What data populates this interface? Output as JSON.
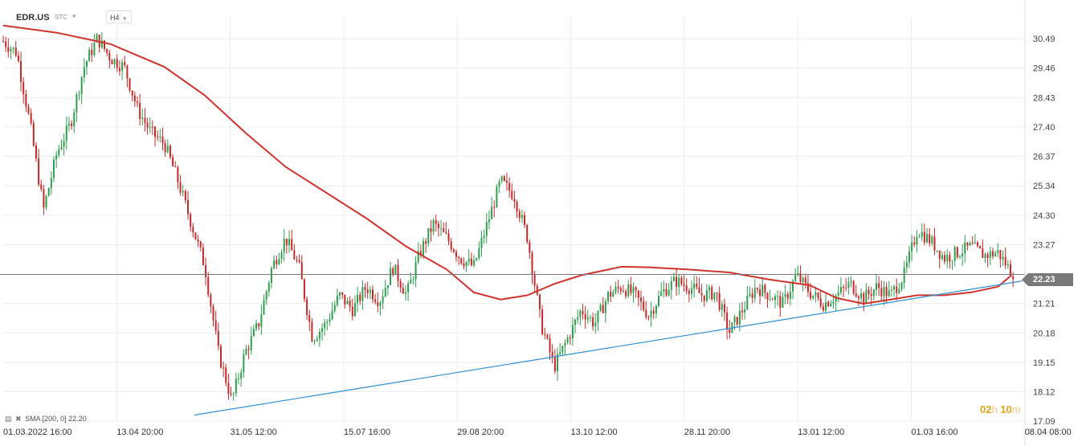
{
  "header": {
    "symbol": "EDR.US",
    "type": "STC",
    "timeframe": "H4"
  },
  "legend": {
    "text": "SMA [200, 0] 22.20",
    "color": "#d0342c"
  },
  "current_price": "22.23",
  "timer": {
    "hours": "02",
    "h_unit": "h",
    "minutes": "10",
    "m_unit": "m"
  },
  "colors": {
    "up": "#2e9e4f",
    "down": "#c62828",
    "sma": "#d0342c",
    "trendline": "#2b8fd6",
    "grid": "#ececec",
    "price_line": "#7a7a7a"
  },
  "chart_data": {
    "type": "candlestick",
    "symbol": "EDR.US",
    "timeframe": "H4",
    "ylim": [
      17.09,
      31.0
    ],
    "y_ticks": [
      "30.49",
      "29.46",
      "28.43",
      "27.40",
      "26.37",
      "25.34",
      "24.30",
      "23.27",
      "22.23",
      "21.21",
      "20.18",
      "19.15",
      "18.12",
      "17.09"
    ],
    "x_ticks": [
      "01.03.2022",
      "16:00",
      "13.04",
      "20:00",
      "31.05",
      "12:00",
      "15.07",
      "16:00",
      "29.08",
      "20:00",
      "13.10",
      "12:00",
      "28.11",
      "20:00",
      "13.01",
      "12:00",
      "01.03",
      "16:00",
      "08.04",
      "08:00"
    ],
    "x_tick_groups": [
      {
        "date": "01.03.2022",
        "time": "16:00"
      },
      {
        "date": "13.04",
        "time": "20:00"
      },
      {
        "date": "31.05",
        "time": "12:00"
      },
      {
        "date": "15.07",
        "time": "16:00"
      },
      {
        "date": "29.08",
        "time": "20:00"
      },
      {
        "date": "13.10",
        "time": "12:00"
      },
      {
        "date": "28.11",
        "time": "20:00"
      },
      {
        "date": "13.01",
        "time": "12:00"
      },
      {
        "date": "01.03",
        "time": "16:00"
      },
      {
        "date": "08.04",
        "time": "08:00"
      }
    ],
    "price_path": [
      [
        0,
        30.4
      ],
      [
        1,
        30.0
      ],
      [
        2,
        27.5
      ],
      [
        3,
        24.5
      ],
      [
        4,
        26.5
      ],
      [
        5,
        27.5
      ],
      [
        6,
        29.5
      ],
      [
        7,
        30.5
      ],
      [
        8,
        29.8
      ],
      [
        9,
        29.5
      ],
      [
        10,
        28.0
      ],
      [
        11,
        27.2
      ],
      [
        12,
        26.8
      ],
      [
        13,
        25.5
      ],
      [
        14,
        24.0
      ],
      [
        15,
        22.5
      ],
      [
        16,
        19.5
      ],
      [
        17,
        17.8
      ],
      [
        18,
        19.5
      ],
      [
        19,
        20.5
      ],
      [
        20,
        22.5
      ],
      [
        21,
        23.5
      ],
      [
        22,
        22.5
      ],
      [
        23,
        20.0
      ],
      [
        24,
        20.5
      ],
      [
        25,
        21.5
      ],
      [
        26,
        21.0
      ],
      [
        27,
        21.8
      ],
      [
        28,
        21.3
      ],
      [
        29,
        22.5
      ],
      [
        30,
        21.5
      ],
      [
        31,
        23.0
      ],
      [
        32,
        24.0
      ],
      [
        33,
        23.5
      ],
      [
        34,
        22.8
      ],
      [
        35,
        22.5
      ],
      [
        36,
        24.0
      ],
      [
        37,
        25.5
      ],
      [
        38,
        25.0
      ],
      [
        39,
        23.5
      ],
      [
        40,
        20.5
      ],
      [
        41,
        19.0
      ],
      [
        42,
        20.0
      ],
      [
        43,
        21.0
      ],
      [
        44,
        20.5
      ],
      [
        45,
        21.5
      ],
      [
        46,
        21.8
      ],
      [
        47,
        21.5
      ],
      [
        48,
        20.8
      ],
      [
        49,
        21.6
      ],
      [
        50,
        22.0
      ],
      [
        51,
        21.8
      ],
      [
        52,
        21.5
      ],
      [
        53,
        21.6
      ],
      [
        54,
        20.2
      ],
      [
        55,
        21.0
      ],
      [
        56,
        21.8
      ],
      [
        57,
        21.5
      ],
      [
        58,
        21.2
      ],
      [
        59,
        22.2
      ],
      [
        60,
        21.6
      ],
      [
        61,
        21.2
      ],
      [
        62,
        21.5
      ],
      [
        63,
        21.9
      ],
      [
        64,
        21.4
      ],
      [
        65,
        21.8
      ],
      [
        66,
        21.5
      ],
      [
        67,
        22.2
      ],
      [
        68,
        23.8
      ],
      [
        69,
        23.4
      ],
      [
        70,
        22.8
      ],
      [
        71,
        23.0
      ],
      [
        72,
        23.2
      ],
      [
        73,
        22.9
      ],
      [
        74,
        23.0
      ],
      [
        75,
        22.3
      ]
    ],
    "sma_200": [
      [
        0,
        30.95
      ],
      [
        4,
        30.7
      ],
      [
        8,
        30.3
      ],
      [
        12,
        29.5
      ],
      [
        15,
        28.5
      ],
      [
        18,
        27.2
      ],
      [
        21,
        26.0
      ],
      [
        24,
        25.1
      ],
      [
        27,
        24.2
      ],
      [
        30,
        23.2
      ],
      [
        33,
        22.4
      ],
      [
        35,
        21.6
      ],
      [
        37,
        21.35
      ],
      [
        39,
        21.5
      ],
      [
        41,
        21.9
      ],
      [
        43,
        22.2
      ],
      [
        46,
        22.5
      ],
      [
        48,
        22.48
      ],
      [
        51,
        22.4
      ],
      [
        54,
        22.3
      ],
      [
        57,
        22.05
      ],
      [
        60,
        21.85
      ],
      [
        62,
        21.4
      ],
      [
        64,
        21.2
      ],
      [
        66,
        21.35
      ],
      [
        68,
        21.5
      ],
      [
        70,
        21.5
      ],
      [
        72,
        21.6
      ],
      [
        74,
        21.8
      ],
      [
        75,
        22.2
      ]
    ],
    "trendline": [
      [
        14.2,
        17.3
      ],
      [
        75.8,
        22.0
      ]
    ],
    "current_price": 22.23,
    "sma_value": 22.2
  }
}
